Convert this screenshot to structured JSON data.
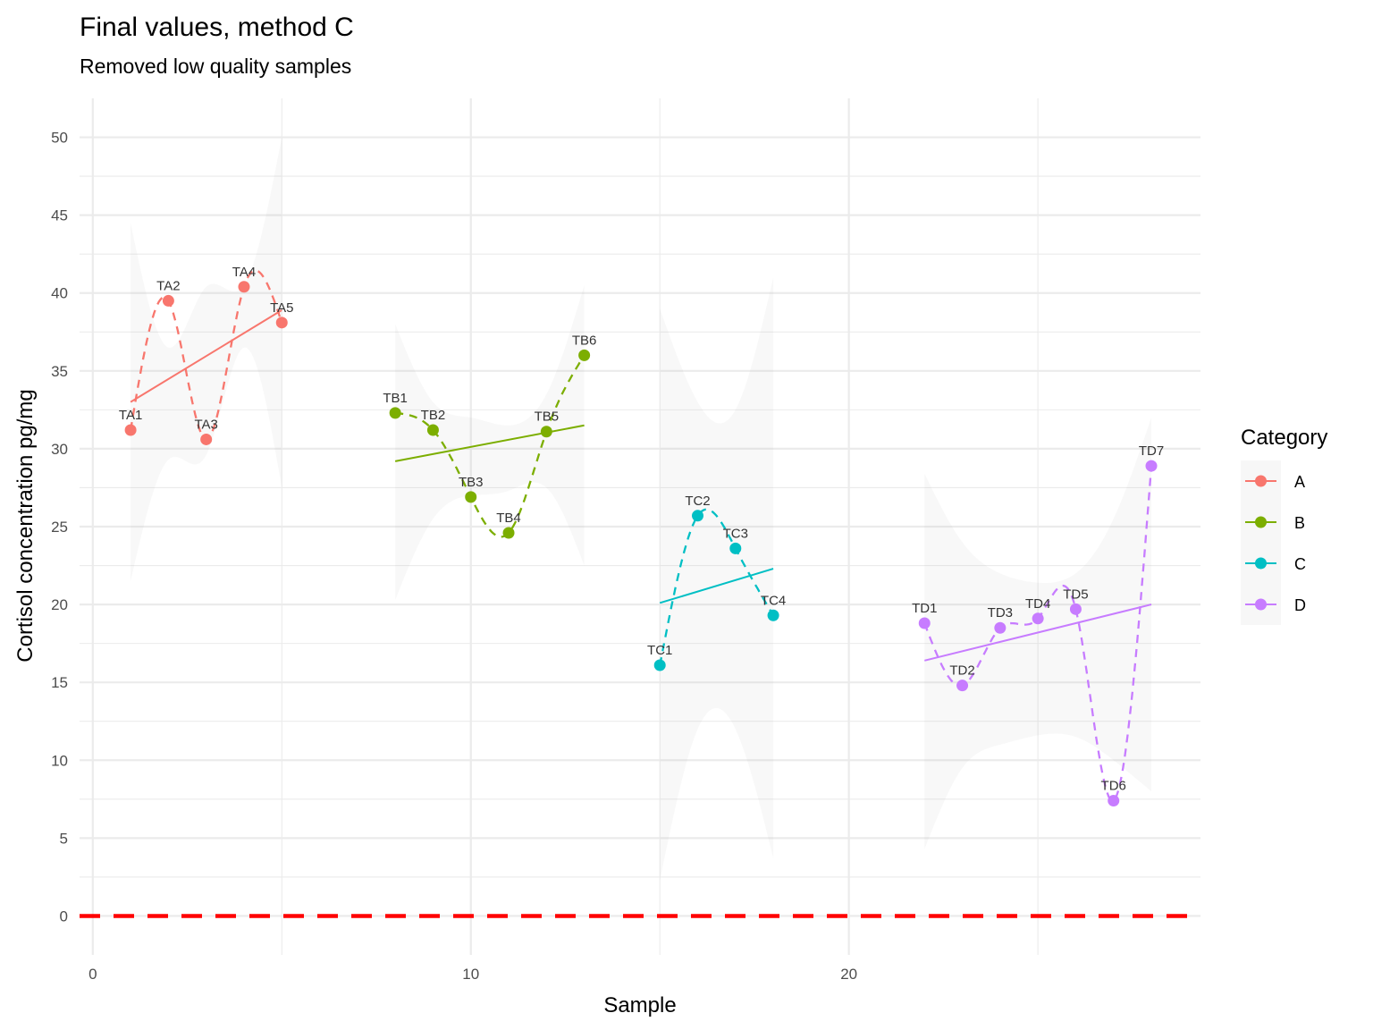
{
  "chart_data": {
    "type": "scatter",
    "title": "Final values, method C",
    "subtitle": "Removed low quality samples",
    "xlabel": "Sample",
    "ylabel": "Cortisol concentration pg/mg",
    "xlim": [
      -0.35,
      29.3
    ],
    "ylim": [
      -2.5,
      52.5
    ],
    "x_ticks": [
      0,
      10,
      20
    ],
    "y_ticks": [
      0,
      5,
      10,
      15,
      20,
      25,
      30,
      35,
      40,
      45,
      50
    ],
    "grid": true,
    "legend": {
      "title": "Category",
      "position": "right"
    },
    "reference_line": {
      "y": 0,
      "color": "#ff0000",
      "style": "dashed"
    },
    "series": [
      {
        "name": "A",
        "color": "#f8766d",
        "points": [
          {
            "x": 1,
            "y": 31.2,
            "label": "TA1"
          },
          {
            "x": 2,
            "y": 39.5,
            "label": "TA2"
          },
          {
            "x": 3,
            "y": 30.6,
            "label": "TA3"
          },
          {
            "x": 4,
            "y": 40.4,
            "label": "TA4"
          },
          {
            "x": 5,
            "y": 38.1,
            "label": "TA5"
          }
        ],
        "trend": {
          "x": [
            1,
            5
          ],
          "y": [
            33.0,
            38.9
          ]
        },
        "band": {
          "x": [
            1,
            2,
            3,
            4,
            5
          ],
          "upper": [
            44.5,
            36.5,
            40.4,
            40.5,
            50.0
          ],
          "lower": [
            21.5,
            29.3,
            29.6,
            36.5,
            27.5
          ]
        }
      },
      {
        "name": "B",
        "color": "#7cae00",
        "points": [
          {
            "x": 8,
            "y": 32.3,
            "label": "TB1"
          },
          {
            "x": 9,
            "y": 31.2,
            "label": "TB2"
          },
          {
            "x": 10,
            "y": 26.9,
            "label": "TB3"
          },
          {
            "x": 11,
            "y": 24.6,
            "label": "TB4"
          },
          {
            "x": 12,
            "y": 31.1,
            "label": "TB5"
          },
          {
            "x": 13,
            "y": 36.0,
            "label": "TB6"
          }
        ],
        "trend": {
          "x": [
            8,
            13
          ],
          "y": [
            29.2,
            31.5
          ]
        },
        "band": {
          "x": [
            8,
            9,
            10,
            11,
            12,
            13
          ],
          "upper": [
            38.0,
            33.0,
            32.0,
            31.5,
            33.5,
            40.5
          ],
          "lower": [
            20.3,
            25.5,
            27.0,
            27.3,
            27.5,
            22.5
          ]
        }
      },
      {
        "name": "C",
        "color": "#00bfc4",
        "points": [
          {
            "x": 15,
            "y": 16.1,
            "label": "TC1"
          },
          {
            "x": 16,
            "y": 25.7,
            "label": "TC2"
          },
          {
            "x": 17,
            "y": 23.6,
            "label": "TC3"
          },
          {
            "x": 18,
            "y": 19.3,
            "label": "TC4"
          }
        ],
        "trend": {
          "x": [
            15,
            18
          ],
          "y": [
            20.1,
            22.3
          ]
        },
        "band": {
          "x": [
            15,
            16,
            17,
            18
          ],
          "upper": [
            39.0,
            33.0,
            32.5,
            41.0
          ],
          "lower": [
            2.3,
            12.0,
            12.0,
            3.7
          ]
        }
      },
      {
        "name": "D",
        "color": "#c77cff",
        "points": [
          {
            "x": 22,
            "y": 18.8,
            "label": "TD1"
          },
          {
            "x": 23,
            "y": 14.8,
            "label": "TD2"
          },
          {
            "x": 24,
            "y": 18.5,
            "label": "TD3"
          },
          {
            "x": 25,
            "y": 19.1,
            "label": "TD4"
          },
          {
            "x": 26,
            "y": 19.7,
            "label": "TD5"
          },
          {
            "x": 27,
            "y": 7.4,
            "label": "TD6"
          },
          {
            "x": 28,
            "y": 28.9,
            "label": "TD7"
          }
        ],
        "trend": {
          "x": [
            22,
            28
          ],
          "y": [
            16.4,
            20.0
          ]
        },
        "band": {
          "x": [
            22,
            23,
            24,
            25,
            26,
            27,
            28
          ],
          "upper": [
            28.4,
            24.0,
            22.0,
            21.4,
            22.0,
            25.5,
            32.0
          ],
          "lower": [
            4.3,
            9.5,
            11.0,
            11.6,
            11.5,
            10.0,
            8.0
          ]
        }
      }
    ]
  }
}
